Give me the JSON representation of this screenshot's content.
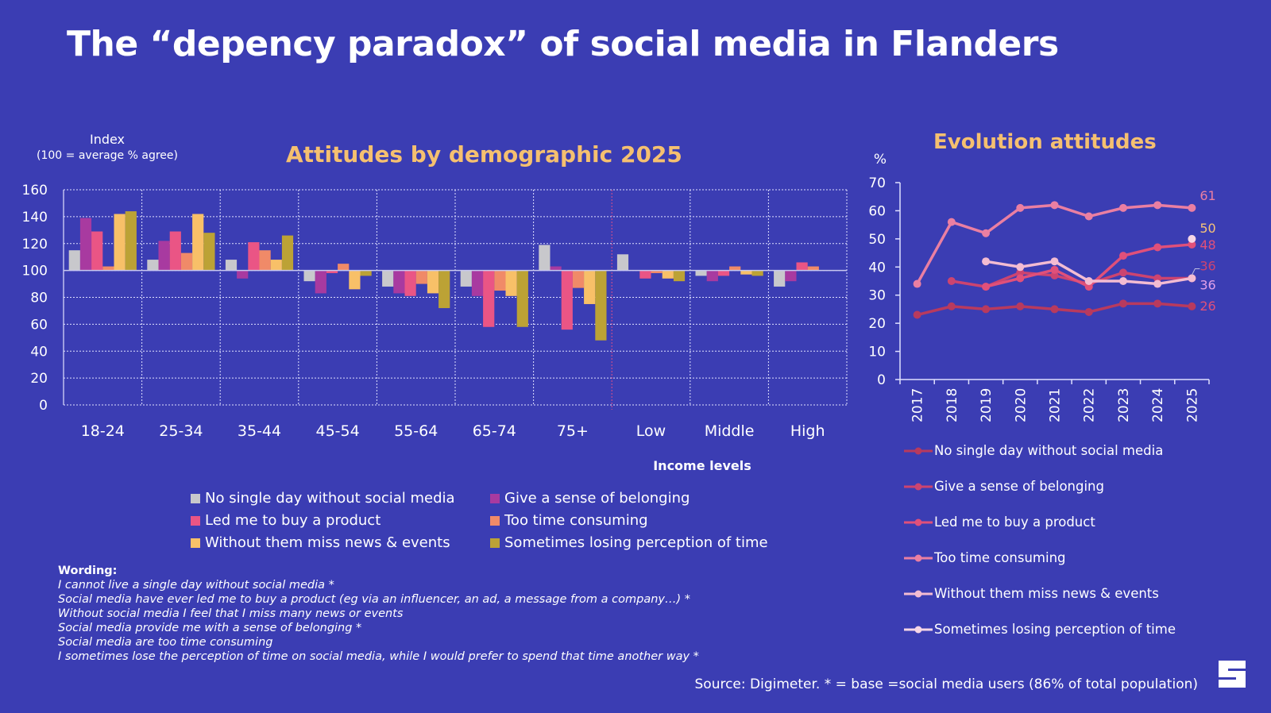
{
  "title": "The “depency paradox” of social media in Flanders",
  "colors": {
    "background": "#3b3db3",
    "accent_title": "#f5c070",
    "bars": [
      "#c8c8cc",
      "#a83aa0",
      "#ea5585",
      "#f08a68",
      "#f8c068",
      "#bca235"
    ],
    "lines": [
      "#b83a5e",
      "#cc4470",
      "#e0507a",
      "#ea7fa2",
      "#f3bcd2",
      "#f6d6e6"
    ]
  },
  "chart_data": [
    {
      "type": "bar",
      "title": "Attitudes by demographic 2025",
      "ylabel": "Index",
      "ylabel_sub": "(100 = average % agree)",
      "xlabel": "Income levels",
      "ylim": [
        0,
        160
      ],
      "yticks": [
        "0",
        "20",
        "40",
        "60",
        "80",
        "100",
        "120",
        "140",
        "160"
      ],
      "baseline": 100,
      "grid": true,
      "categories": [
        "18-24",
        "25-34",
        "35-44",
        "45-54",
        "55-64",
        "65-74",
        "75+",
        "Low",
        "Middle",
        "High"
      ],
      "series": [
        {
          "name": "No single day without social media",
          "values": [
            115,
            108,
            108,
            92,
            88,
            88,
            119,
            112,
            96,
            88
          ]
        },
        {
          "name": "Give a sense of belonging",
          "values": [
            139,
            122,
            94,
            83,
            83,
            81,
            103,
            100,
            92,
            92
          ]
        },
        {
          "name": "Led me to buy a product",
          "values": [
            129,
            129,
            121,
            98,
            81,
            58,
            56,
            94,
            96,
            106
          ]
        },
        {
          "name": "Too time consuming",
          "values": [
            103,
            113,
            115,
            105,
            90,
            85,
            87,
            98,
            103,
            103
          ]
        },
        {
          "name": "Without them miss news & events",
          "values": [
            142,
            142,
            108,
            86,
            83,
            81,
            75,
            94,
            97,
            100
          ]
        },
        {
          "name": "Sometimes losing perception of time",
          "values": [
            144,
            128,
            126,
            96,
            72,
            58,
            48,
            92,
            96,
            100
          ]
        }
      ],
      "legend_placement": "bottom"
    },
    {
      "type": "line",
      "title": "Evolution attitudes",
      "ylabel": "%",
      "ylim": [
        0,
        70
      ],
      "yticks": [
        "0",
        "10",
        "20",
        "30",
        "40",
        "50",
        "60",
        "70"
      ],
      "x": [
        "2017",
        "2018",
        "2019",
        "2020",
        "2021",
        "2022",
        "2023",
        "2024",
        "2025"
      ],
      "series": [
        {
          "name": "No single day without social media",
          "values": [
            23,
            26,
            25,
            26,
            25,
            24,
            27,
            27,
            26
          ],
          "end_label": "26"
        },
        {
          "name": "Give a sense of belonging",
          "values": [
            null,
            35,
            33,
            38,
            37,
            34,
            38,
            36,
            36
          ],
          "end_label": "36"
        },
        {
          "name": "Led me to buy a product",
          "values": [
            null,
            null,
            33,
            36,
            39,
            33,
            44,
            47,
            48
          ],
          "end_label": "48"
        },
        {
          "name": "Too time consuming",
          "values": [
            34,
            56,
            52,
            61,
            62,
            58,
            61,
            62,
            61
          ],
          "end_label": "61"
        },
        {
          "name": "Without them miss news & events",
          "values": [
            null,
            null,
            42,
            40,
            42,
            35,
            35,
            34,
            36
          ],
          "end_label": "36"
        },
        {
          "name": "Sometimes losing perception of time",
          "values": [
            null,
            null,
            null,
            null,
            null,
            null,
            null,
            null,
            50
          ],
          "end_label": "50"
        }
      ],
      "legend_placement": "bottom"
    }
  ],
  "wording": {
    "heading": "Wording:",
    "lines": [
      "I cannot live a single day without social media *",
      "Social media have ever led me to buy a product (eg via an influencer, an ad, a message from a company…) *",
      "Without social media I feel that I miss many news or events",
      "Social media provide me with a sense of belonging *",
      "Social media are too time consuming",
      "I sometimes lose the perception of time on social media, while I would prefer to spend that time another way *"
    ]
  },
  "source": "Source: Digimeter. * = base =social media users (86% of total population)",
  "logo": {
    "letter": "S",
    "icon": "brand-logo-icon"
  }
}
